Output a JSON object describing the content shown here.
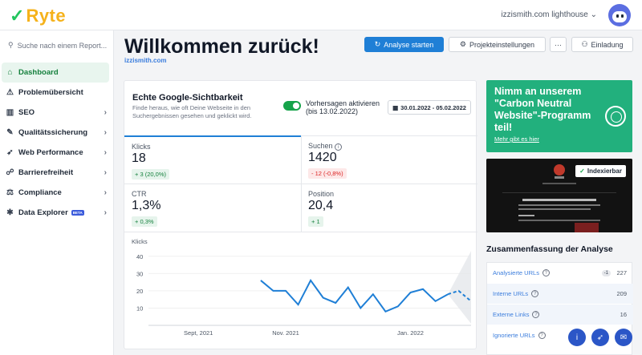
{
  "brand": {
    "name": "Ryte",
    "check_icon": "check-icon"
  },
  "header": {
    "project_selector": "izzismith.com lighthouse"
  },
  "sidebar": {
    "search_placeholder": "Suche nach einem Report...",
    "items": [
      {
        "label": "Dashboard",
        "icon": "home-icon",
        "active": true
      },
      {
        "label": "Problemübersicht",
        "icon": "warning-icon"
      },
      {
        "label": "SEO",
        "icon": "bar-chart-icon"
      },
      {
        "label": "Qualitätssicherung",
        "icon": "wrench-icon"
      },
      {
        "label": "Web Performance",
        "icon": "rocket-icon"
      },
      {
        "label": "Barrierefreiheit",
        "icon": "accessibility-icon"
      },
      {
        "label": "Compliance",
        "icon": "scale-icon"
      },
      {
        "label": "Data Explorer",
        "icon": "bug-icon",
        "badge": "BETA"
      }
    ]
  },
  "page": {
    "title": "Willkommen zurück!",
    "domain": "izzismith.com",
    "buttons": {
      "analyse": "Analyse starten",
      "settings": "Projekteinstellungen",
      "more": "···",
      "invite": "Einladung"
    }
  },
  "visibility": {
    "title": "Echte Google-Sichtbarkeit",
    "description": "Finde heraus, wie oft Deine Webseite in den Suchergebnissen gesehen und geklickt wird.",
    "toggle_label_1": "Vorhersagen aktivieren",
    "toggle_label_2": "(bis 13.02.2022)",
    "date_range": "30.01.2022 - 05.02.2022",
    "metrics": {
      "clicks": {
        "label": "Klicks",
        "value": "18",
        "change": "+ 3 (20,0%)"
      },
      "searches": {
        "label": "Suchen",
        "value": "1420",
        "change": "- 12 (-0,8%)"
      },
      "ctr": {
        "label": "CTR",
        "value": "1,3%",
        "change": "+ 0,3%"
      },
      "position": {
        "label": "Position",
        "value": "20,4",
        "change": "+ 1"
      }
    }
  },
  "chart_data": {
    "type": "line",
    "title": "",
    "ylabel": "Klicks",
    "xlabel": "",
    "ylim": [
      0,
      45
    ],
    "yticks": [
      10,
      20,
      30,
      40
    ],
    "xtick_labels": [
      "Sept, 2021",
      "Nov. 2021",
      "Jan. 2022"
    ],
    "x_range": [
      "2021-08-16",
      "2022-02-13"
    ],
    "xtick_dates": [
      "2021-09-13",
      "2021-11-01",
      "2022-01-10"
    ],
    "series": [
      {
        "x": [
          "2021-10-18",
          "2021-10-25",
          "2021-11-01",
          "2021-11-08",
          "2021-11-15",
          "2021-11-22",
          "2021-11-29",
          "2021-12-06",
          "2021-12-13",
          "2021-12-20",
          "2021-12-27",
          "2022-01-03",
          "2022-01-10",
          "2022-01-17",
          "2022-01-24",
          "2022-01-31"
        ],
        "values": [
          26,
          20,
          20,
          12,
          26,
          16,
          13,
          22,
          10,
          18,
          8,
          11,
          19,
          21,
          14,
          18
        ],
        "color": "#1f7fd6"
      },
      {
        "x": [
          "2022-01-31",
          "2022-02-06",
          "2022-02-13"
        ],
        "values": [
          18,
          20,
          14
        ],
        "color": "#1f7fd6",
        "style": "dashed"
      }
    ]
  },
  "promo": {
    "text": "Nimm an unserem \"Carbon Neutral Website\"-Programm teil!",
    "link": "Mehr gibt es hier"
  },
  "preview": {
    "status": "Indexierbar"
  },
  "summary": {
    "title": "Zusammenfassung der Analyse",
    "rows": [
      {
        "label": "Analysierte URLs",
        "value": "227",
        "delta": "-1"
      },
      {
        "label": "Interne URLs",
        "value": "209"
      },
      {
        "label": "Externe Links",
        "value": "16"
      },
      {
        "label": "Ignorierte URLs",
        "value": ""
      }
    ]
  },
  "colors": {
    "accent": "#1f7fd6",
    "success": "#16a34a",
    "promo": "#22b07d",
    "brand_yellow": "#f5b21b"
  }
}
